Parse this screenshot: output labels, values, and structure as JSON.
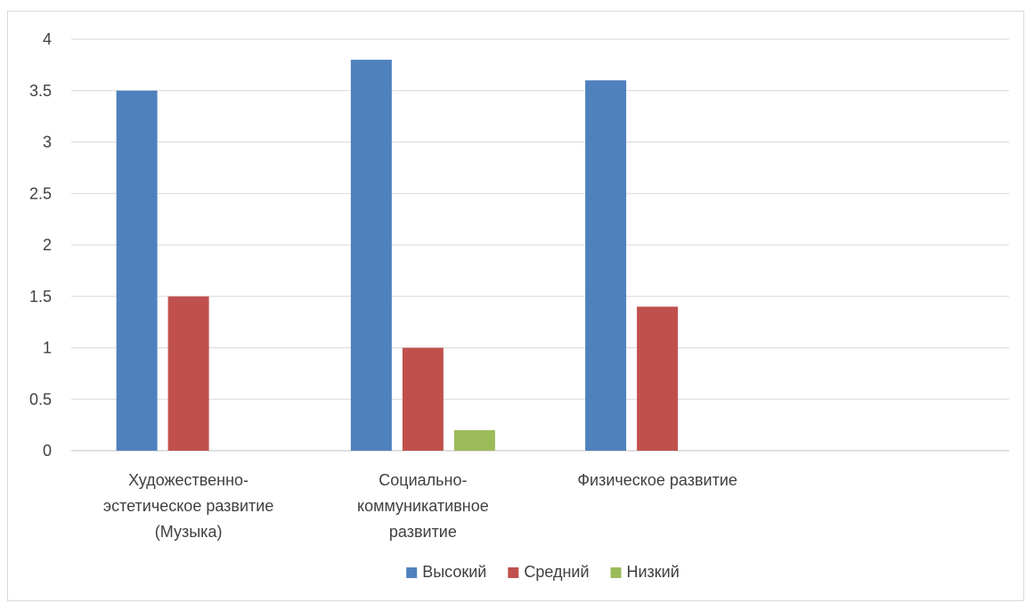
{
  "chart_data": {
    "type": "bar",
    "title": "",
    "xlabel": "",
    "ylabel": "",
    "ylim": [
      0,
      4
    ],
    "yticks": [
      "0",
      "0.5",
      "1",
      "1.5",
      "2",
      "2.5",
      "3",
      "3.5",
      "4"
    ],
    "grid": true,
    "legend_position": "bottom",
    "categories": [
      [
        "Художественно-",
        "эстетическое развитие",
        "(Музыка)"
      ],
      [
        "Социально-",
        "коммуникативное",
        "развитие"
      ],
      [
        "Физическое развитие"
      ],
      [
        ""
      ]
    ],
    "series": [
      {
        "name": "Высокий",
        "color": "#4f81bd",
        "values": [
          3.5,
          3.8,
          3.6,
          null
        ]
      },
      {
        "name": "Средний",
        "color": "#c0504d",
        "values": [
          1.5,
          1.0,
          1.4,
          null
        ]
      },
      {
        "name": "Низкий",
        "color": "#9bbb59",
        "values": [
          null,
          0.2,
          null,
          null
        ]
      }
    ]
  }
}
